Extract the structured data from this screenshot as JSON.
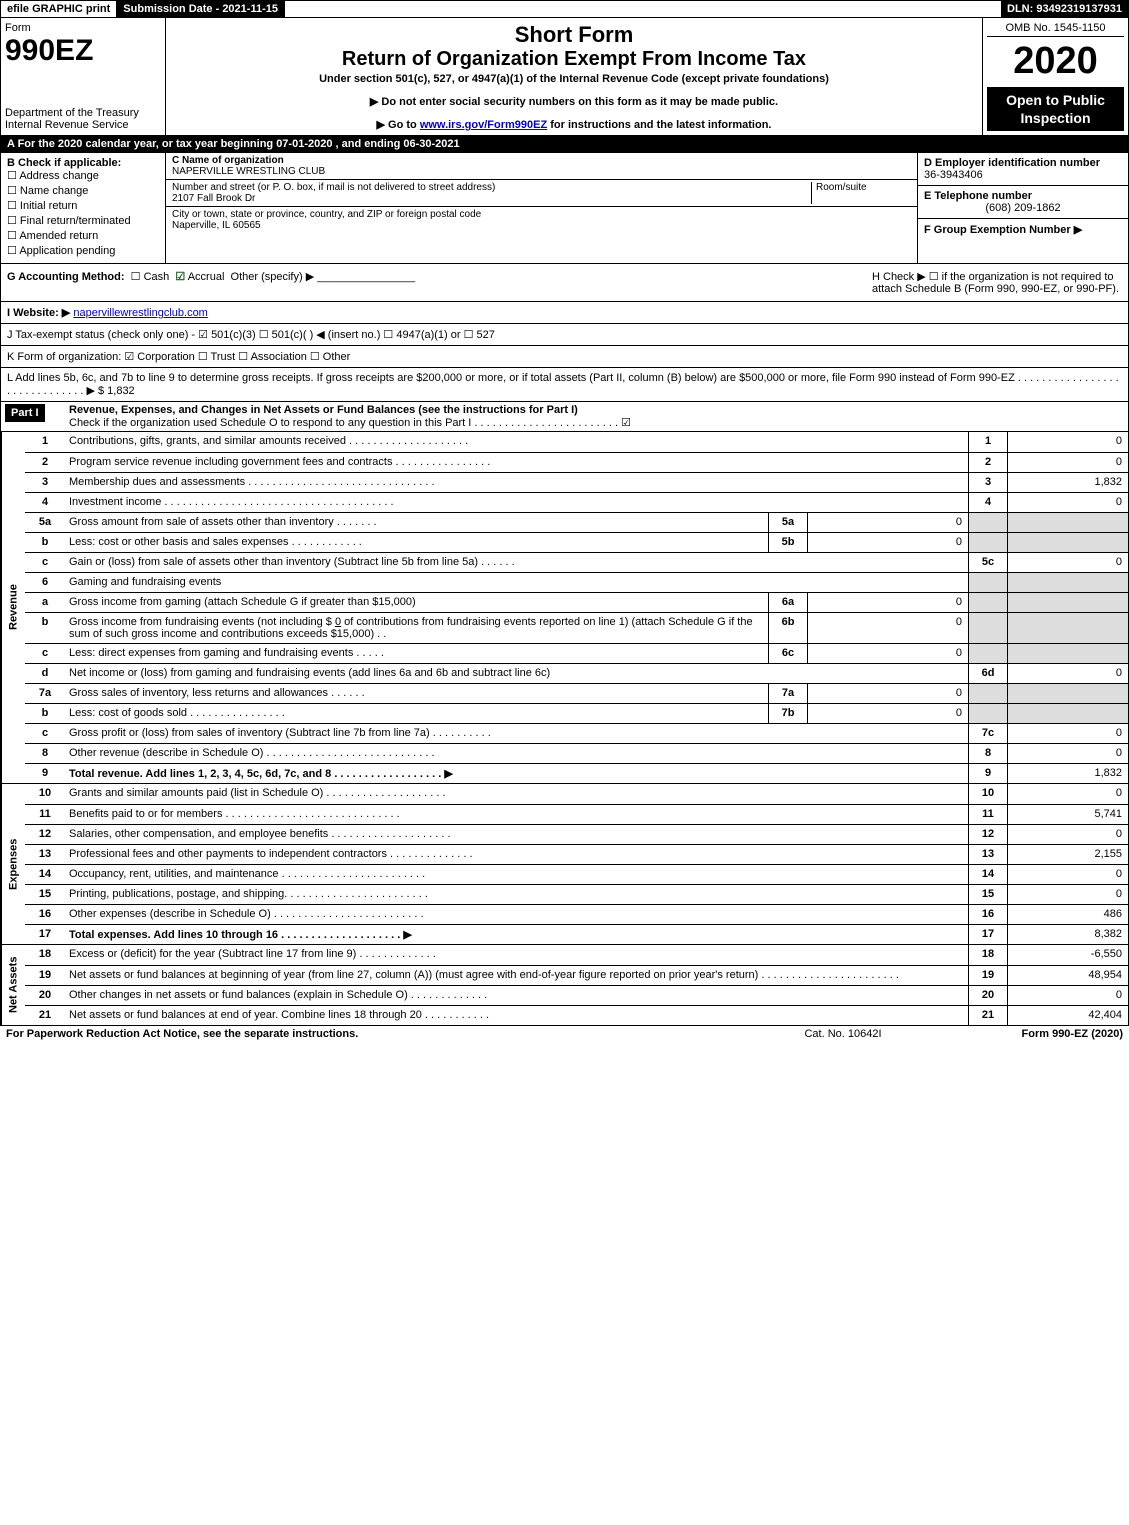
{
  "topbar": {
    "efile": "efile GRAPHIC print",
    "submission": "Submission Date - 2021-11-15",
    "dln": "DLN: 93492319137931"
  },
  "header": {
    "form_label": "Form",
    "form_num": "990EZ",
    "dept1": "Department of the Treasury",
    "dept2": "Internal Revenue Service",
    "title1": "Short Form",
    "title2": "Return of Organization Exempt From Income Tax",
    "subtitle": "Under section 501(c), 527, or 4947(a)(1) of the Internal Revenue Code (except private foundations)",
    "note1": "▶ Do not enter social security numbers on this form as it may be made public.",
    "note2_pre": "▶ Go to ",
    "note2_link": "www.irs.gov/Form990EZ",
    "note2_post": " for instructions and the latest information.",
    "omb": "OMB No. 1545-1150",
    "year": "2020",
    "open_box": "Open to Public Inspection"
  },
  "section_a": "A  For the 2020 calendar year, or tax year beginning 07-01-2020 , and ending 06-30-2021",
  "box_b": {
    "label": "B  Check if applicable:",
    "items": [
      "Address change",
      "Name change",
      "Initial return",
      "Final return/terminated",
      "Amended return",
      "Application pending"
    ]
  },
  "box_c": {
    "name_label": "C Name of organization",
    "name": "NAPERVILLE WRESTLING CLUB",
    "addr_label": "Number and street (or P. O. box, if mail is not delivered to street address)",
    "addr": "2107 Fall Brook Dr",
    "room_label": "Room/suite",
    "city_label": "City or town, state or province, country, and ZIP or foreign postal code",
    "city": "Naperville, IL  60565"
  },
  "box_d": {
    "ein_label": "D Employer identification number",
    "ein": "36-3943406",
    "tel_label": "E Telephone number",
    "tel": "(608) 209-1862",
    "grp_label": "F Group Exemption Number   ▶"
  },
  "row_g": {
    "left_label": "G Accounting Method:",
    "cash": "Cash",
    "accrual": "Accrual",
    "other": "Other (specify) ▶",
    "h_label": "H  Check ▶  ☐  if the organization is not required to attach Schedule B (Form 990, 990-EZ, or 990-PF)."
  },
  "row_i": {
    "label": "I Website: ▶",
    "link": "napervillewrestlingclub.com"
  },
  "row_j": "J Tax-exempt status (check only one) - ☑ 501(c)(3) ☐ 501(c)( ) ◀ (insert no.) ☐ 4947(a)(1) or ☐ 527",
  "row_k": "K Form of organization:  ☑ Corporation  ☐ Trust  ☐ Association  ☐ Other",
  "row_l": "L Add lines 5b, 6c, and 7b to line 9 to determine gross receipts. If gross receipts are $200,000 or more, or if total assets (Part II, column (B) below) are $500,000 or more, file Form 990 instead of Form 990-EZ  .  .  .  .  .  .  .  .  .  .  .  .  .  .  .  .  .  .  .  .  .  .  .  .  .  .  .  .  .  .  ▶ $ 1,832",
  "part1": {
    "label": "Part I",
    "title": "Revenue, Expenses, and Changes in Net Assets or Fund Balances (see the instructions for Part I)",
    "check": "Check if the organization used Schedule O to respond to any question in this Part I  .  .  .  .  .  .  .  .  .  .  .  .  .  .  .  .  .  .  .  .  .  .  .  .  ☑"
  },
  "revenue_label": "Revenue",
  "expenses_label": "Expenses",
  "netassets_label": "Net Assets",
  "lines": {
    "l1": {
      "num": "1",
      "desc": "Contributions, gifts, grants, and similar amounts received  .  .  .  .  .  .  .  .  .  .  .  .  .  .  .  .  .  .  .  .",
      "rnum": "1",
      "rval": "0"
    },
    "l2": {
      "num": "2",
      "desc": "Program service revenue including government fees and contracts  .  .  .  .  .  .  .  .  .  .  .  .  .  .  .  .",
      "rnum": "2",
      "rval": "0"
    },
    "l3": {
      "num": "3",
      "desc": "Membership dues and assessments  .  .  .  .  .  .  .  .  .  .  .  .  .  .  .  .  .  .  .  .  .  .  .  .  .  .  .  .  .  .  .",
      "rnum": "3",
      "rval": "1,832"
    },
    "l4": {
      "num": "4",
      "desc": "Investment income  .  .  .  .  .  .  .  .  .  .  .  .  .  .  .  .  .  .  .  .  .  .  .  .  .  .  .  .  .  .  .  .  .  .  .  .  .  .",
      "rnum": "4",
      "rval": "0"
    },
    "l5a": {
      "num": "5a",
      "desc": "Gross amount from sale of assets other than inventory  .  .  .  .  .  .  .",
      "snum": "5a",
      "sval": "0"
    },
    "l5b": {
      "num": "b",
      "desc": "Less: cost or other basis and sales expenses  .  .  .  .  .  .  .  .  .  .  .  .",
      "snum": "5b",
      "sval": "0"
    },
    "l5c": {
      "num": "c",
      "desc": "Gain or (loss) from sale of assets other than inventory (Subtract line 5b from line 5a)  .  .  .  .  .  .",
      "rnum": "5c",
      "rval": "0"
    },
    "l6": {
      "num": "6",
      "desc": "Gaming and fundraising events"
    },
    "l6a": {
      "num": "a",
      "desc": "Gross income from gaming (attach Schedule G if greater than $15,000)",
      "snum": "6a",
      "sval": "0"
    },
    "l6b": {
      "num": "b",
      "desc": "Gross income from fundraising events (not including $ ",
      "desc2": "0",
      "desc3": " of contributions from fundraising events reported on line 1) (attach Schedule G if the sum of such gross income and contributions exceeds $15,000)  .  .",
      "snum": "6b",
      "sval": "0"
    },
    "l6c": {
      "num": "c",
      "desc": "Less: direct expenses from gaming and fundraising events  .  .  .  .  .",
      "snum": "6c",
      "sval": "0"
    },
    "l6d": {
      "num": "d",
      "desc": "Net income or (loss) from gaming and fundraising events (add lines 6a and 6b and subtract line 6c)",
      "rnum": "6d",
      "rval": "0"
    },
    "l7a": {
      "num": "7a",
      "desc": "Gross sales of inventory, less returns and allowances  .  .  .  .  .  .",
      "snum": "7a",
      "sval": "0"
    },
    "l7b": {
      "num": "b",
      "desc": "Less: cost of goods sold  .  .  .  .  .  .  .  .  .  .  .  .  .  .  .  .",
      "snum": "7b",
      "sval": "0"
    },
    "l7c": {
      "num": "c",
      "desc": "Gross profit or (loss) from sales of inventory (Subtract line 7b from line 7a)  .  .  .  .  .  .  .  .  .  .",
      "rnum": "7c",
      "rval": "0"
    },
    "l8": {
      "num": "8",
      "desc": "Other revenue (describe in Schedule O)  .  .  .  .  .  .  .  .  .  .  .  .  .  .  .  .  .  .  .  .  .  .  .  .  .  .  .  .",
      "rnum": "8",
      "rval": "0"
    },
    "l9": {
      "num": "9",
      "desc": "Total revenue. Add lines 1, 2, 3, 4, 5c, 6d, 7c, and 8  .  .  .  .  .  .  .  .  .  .  .  .  .  .  .  .  .  .  ▶",
      "rnum": "9",
      "rval": "1,832"
    },
    "l10": {
      "num": "10",
      "desc": "Grants and similar amounts paid (list in Schedule O)  .  .  .  .  .  .  .  .  .  .  .  .  .  .  .  .  .  .  .  .",
      "rnum": "10",
      "rval": "0"
    },
    "l11": {
      "num": "11",
      "desc": "Benefits paid to or for members  .  .  .  .  .  .  .  .  .  .  .  .  .  .  .  .  .  .  .  .  .  .  .  .  .  .  .  .  .",
      "rnum": "11",
      "rval": "5,741"
    },
    "l12": {
      "num": "12",
      "desc": "Salaries, other compensation, and employee benefits  .  .  .  .  .  .  .  .  .  .  .  .  .  .  .  .  .  .  .  .",
      "rnum": "12",
      "rval": "0"
    },
    "l13": {
      "num": "13",
      "desc": "Professional fees and other payments to independent contractors  .  .  .  .  .  .  .  .  .  .  .  .  .  .",
      "rnum": "13",
      "rval": "2,155"
    },
    "l14": {
      "num": "14",
      "desc": "Occupancy, rent, utilities, and maintenance  .  .  .  .  .  .  .  .  .  .  .  .  .  .  .  .  .  .  .  .  .  .  .  .",
      "rnum": "14",
      "rval": "0"
    },
    "l15": {
      "num": "15",
      "desc": "Printing, publications, postage, and shipping.  .  .  .  .  .  .  .  .  .  .  .  .  .  .  .  .  .  .  .  .  .  .  .",
      "rnum": "15",
      "rval": "0"
    },
    "l16": {
      "num": "16",
      "desc": "Other expenses (describe in Schedule O)  .  .  .  .  .  .  .  .  .  .  .  .  .  .  .  .  .  .  .  .  .  .  .  .  .",
      "rnum": "16",
      "rval": "486"
    },
    "l17": {
      "num": "17",
      "desc": "Total expenses. Add lines 10 through 16  .  .  .  .  .  .  .  .  .  .  .  .  .  .  .  .  .  .  .  .  ▶",
      "rnum": "17",
      "rval": "8,382"
    },
    "l18": {
      "num": "18",
      "desc": "Excess or (deficit) for the year (Subtract line 17 from line 9)  .  .  .  .  .  .  .  .  .  .  .  .  .",
      "rnum": "18",
      "rval": "-6,550"
    },
    "l19": {
      "num": "19",
      "desc": "Net assets or fund balances at beginning of year (from line 27, column (A)) (must agree with end-of-year figure reported on prior year's return)  .  .  .  .  .  .  .  .  .  .  .  .  .  .  .  .  .  .  .  .  .  .  .",
      "rnum": "19",
      "rval": "48,954"
    },
    "l20": {
      "num": "20",
      "desc": "Other changes in net assets or fund balances (explain in Schedule O)  .  .  .  .  .  .  .  .  .  .  .  .  .",
      "rnum": "20",
      "rval": "0"
    },
    "l21": {
      "num": "21",
      "desc": "Net assets or fund balances at end of year. Combine lines 18 through 20  .  .  .  .  .  .  .  .  .  .  .",
      "rnum": "21",
      "rval": "42,404"
    }
  },
  "footer": {
    "left": "For Paperwork Reduction Act Notice, see the separate instructions.",
    "mid": "Cat. No. 10642I",
    "right": "Form 990-EZ (2020)"
  }
}
